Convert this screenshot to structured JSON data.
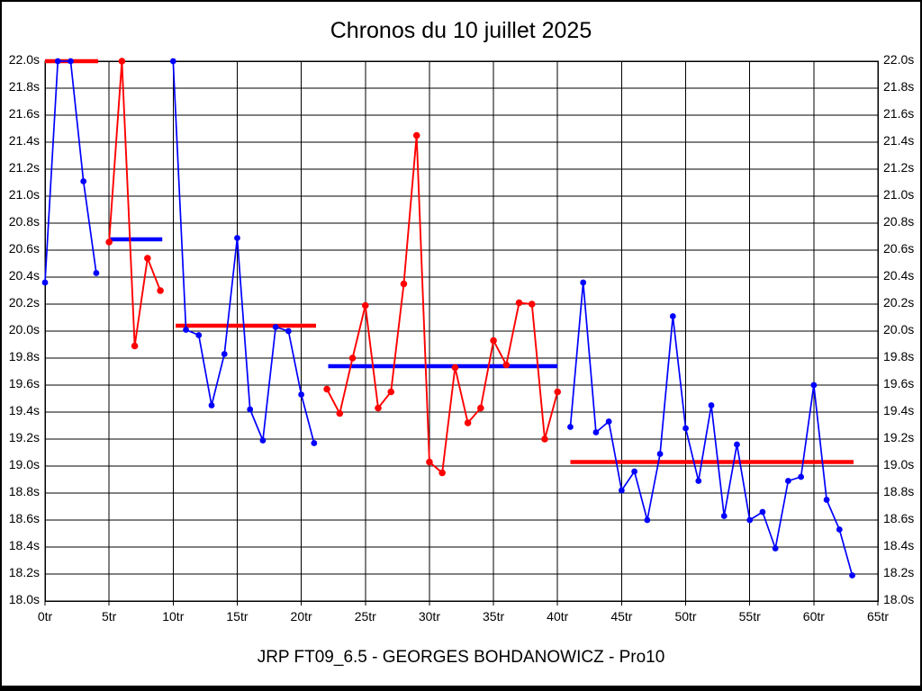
{
  "title": "Chronos du 10 juillet 2025",
  "footer": "JRP FT09_6.5 - GEORGES BOHDANOWICZ - Pro10",
  "colors": {
    "blue": "#0000ff",
    "red": "#ff0000",
    "grid": "#000000",
    "background": "#ffffff"
  },
  "chart_data": {
    "type": "line",
    "title": "Chronos du 10 juillet 2025",
    "subtitle": "JRP FT09_6.5 - GEORGES BOHDANOWICZ - Pro10",
    "x_unit": "tr",
    "y_unit": "s",
    "xlim": [
      0,
      65
    ],
    "ylim": [
      18.0,
      22.0
    ],
    "x_tick_step": 5,
    "y_tick_step": 0.2,
    "grid": true,
    "legend": "none",
    "y_tick_labels": [
      "22.0s",
      "21.8s",
      "21.6s",
      "21.4s",
      "21.2s",
      "21.0s",
      "20.8s",
      "20.6s",
      "20.4s",
      "20.2s",
      "20.0s",
      "19.8s",
      "19.6s",
      "19.4s",
      "19.2s",
      "19.0s",
      "18.8s",
      "18.6s",
      "18.4s",
      "18.2s",
      "18.0s"
    ],
    "x_tick_labels": [
      "0tr",
      "5tr",
      "10tr",
      "15tr",
      "20tr",
      "25tr",
      "30tr",
      "35tr",
      "40tr",
      "45tr",
      "50tr",
      "55tr",
      "60tr",
      "65tr"
    ],
    "series": [
      {
        "name": "stint-1-laps",
        "color": "blue",
        "start_lap": 0,
        "values": [
          20.36,
          22.0,
          22.0,
          21.11,
          20.43
        ]
      },
      {
        "name": "stint-2-laps",
        "color": "red",
        "start_lap": 5,
        "values": [
          20.66,
          22.0,
          19.89,
          20.54,
          20.3
        ]
      },
      {
        "name": "stint-3-laps",
        "color": "blue",
        "start_lap": 10,
        "values": [
          22.0,
          20.01,
          19.97,
          19.45,
          19.83,
          20.69,
          19.42,
          19.19,
          20.03,
          20.0,
          19.53,
          19.17
        ]
      },
      {
        "name": "stint-4-laps",
        "color": "red",
        "start_lap": 22,
        "values": [
          19.57,
          19.39,
          19.8,
          20.19,
          19.43,
          19.55,
          20.35,
          21.45,
          19.03,
          18.95,
          19.73,
          19.32,
          19.43,
          19.93,
          19.75,
          20.21,
          20.2,
          19.2,
          19.55
        ]
      },
      {
        "name": "stint-5-laps",
        "color": "blue",
        "start_lap": 41,
        "values": [
          19.29,
          20.36,
          19.25,
          19.33,
          18.82,
          18.96,
          18.6,
          19.09,
          20.11,
          19.28,
          18.89,
          19.45,
          18.63,
          19.16,
          18.6,
          18.66,
          18.39,
          18.89,
          18.92,
          19.6,
          18.75,
          18.53,
          18.19
        ]
      }
    ],
    "average_lines": [
      {
        "name": "stint-1-average",
        "color": "red",
        "value": 22.0,
        "from_lap": 0.0,
        "to_lap": 4.15
      },
      {
        "name": "stint-2-average",
        "color": "blue",
        "value": 20.68,
        "from_lap": 5.1,
        "to_lap": 9.15
      },
      {
        "name": "stint-3-average",
        "color": "red",
        "value": 20.04,
        "from_lap": 10.2,
        "to_lap": 21.15
      },
      {
        "name": "stint-4-average",
        "color": "blue",
        "value": 19.74,
        "from_lap": 22.1,
        "to_lap": 40.0
      },
      {
        "name": "stint-5-average",
        "color": "red",
        "value": 19.03,
        "from_lap": 41.0,
        "to_lap": 63.1
      }
    ]
  }
}
